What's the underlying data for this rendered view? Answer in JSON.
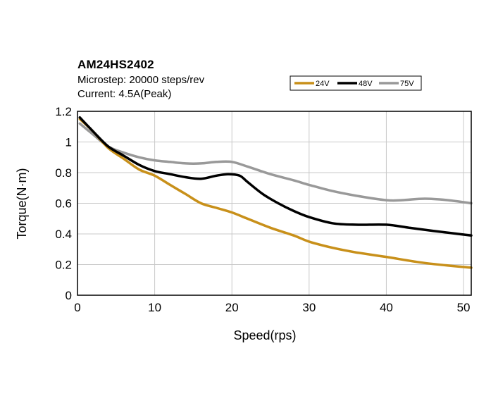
{
  "chart_data": {
    "type": "line",
    "title": "AM24HS2402",
    "subtitle_lines": [
      "Microstep: 20000 steps/rev",
      "Current: 4.5A(Peak)"
    ],
    "xlabel": "Speed(rps)",
    "ylabel": "Torque(N·m)",
    "xlim": [
      0,
      51
    ],
    "ylim": [
      0,
      1.2
    ],
    "xticks": [
      0,
      10,
      20,
      30,
      40,
      50
    ],
    "xtick_labels": [
      "0",
      "10",
      "20",
      "30",
      "40",
      "50"
    ],
    "yticks": [
      0,
      0.2,
      0.4,
      0.6,
      0.8,
      1.0,
      1.2
    ],
    "ytick_labels": [
      "0",
      "0.2",
      "0.4",
      "0.6",
      "0.8",
      "1",
      "1.2"
    ],
    "grid": true,
    "legend_position": "top-right",
    "series": [
      {
        "name": "24V",
        "color": "#c8901a",
        "x": [
          0.3,
          2,
          4,
          6,
          8,
          10,
          12,
          14,
          16,
          18,
          20,
          22,
          25,
          28,
          30,
          33,
          36,
          40,
          45,
          51
        ],
        "y": [
          1.15,
          1.07,
          0.96,
          0.89,
          0.82,
          0.78,
          0.72,
          0.66,
          0.6,
          0.57,
          0.54,
          0.5,
          0.44,
          0.39,
          0.35,
          0.31,
          0.28,
          0.25,
          0.21,
          0.18
        ]
      },
      {
        "name": "48V",
        "color": "#000000",
        "x": [
          0.3,
          2,
          4,
          6,
          8,
          10,
          12,
          14,
          16,
          18,
          19.5,
          21,
          22,
          24,
          26,
          28,
          30,
          33,
          36,
          40,
          43,
          46,
          51
        ],
        "y": [
          1.16,
          1.07,
          0.97,
          0.91,
          0.85,
          0.81,
          0.79,
          0.77,
          0.76,
          0.78,
          0.79,
          0.78,
          0.74,
          0.66,
          0.6,
          0.55,
          0.51,
          0.47,
          0.46,
          0.46,
          0.44,
          0.42,
          0.39
        ]
      },
      {
        "name": "75V",
        "color": "#999999",
        "x": [
          0.3,
          2,
          4,
          6,
          8,
          10,
          12,
          14,
          16,
          18,
          20,
          22,
          25,
          28,
          30,
          33,
          36,
          40,
          42,
          45,
          48,
          51
        ],
        "y": [
          1.12,
          1.05,
          0.97,
          0.93,
          0.9,
          0.88,
          0.87,
          0.86,
          0.86,
          0.87,
          0.87,
          0.84,
          0.79,
          0.75,
          0.72,
          0.68,
          0.65,
          0.62,
          0.62,
          0.63,
          0.62,
          0.6
        ]
      }
    ]
  }
}
